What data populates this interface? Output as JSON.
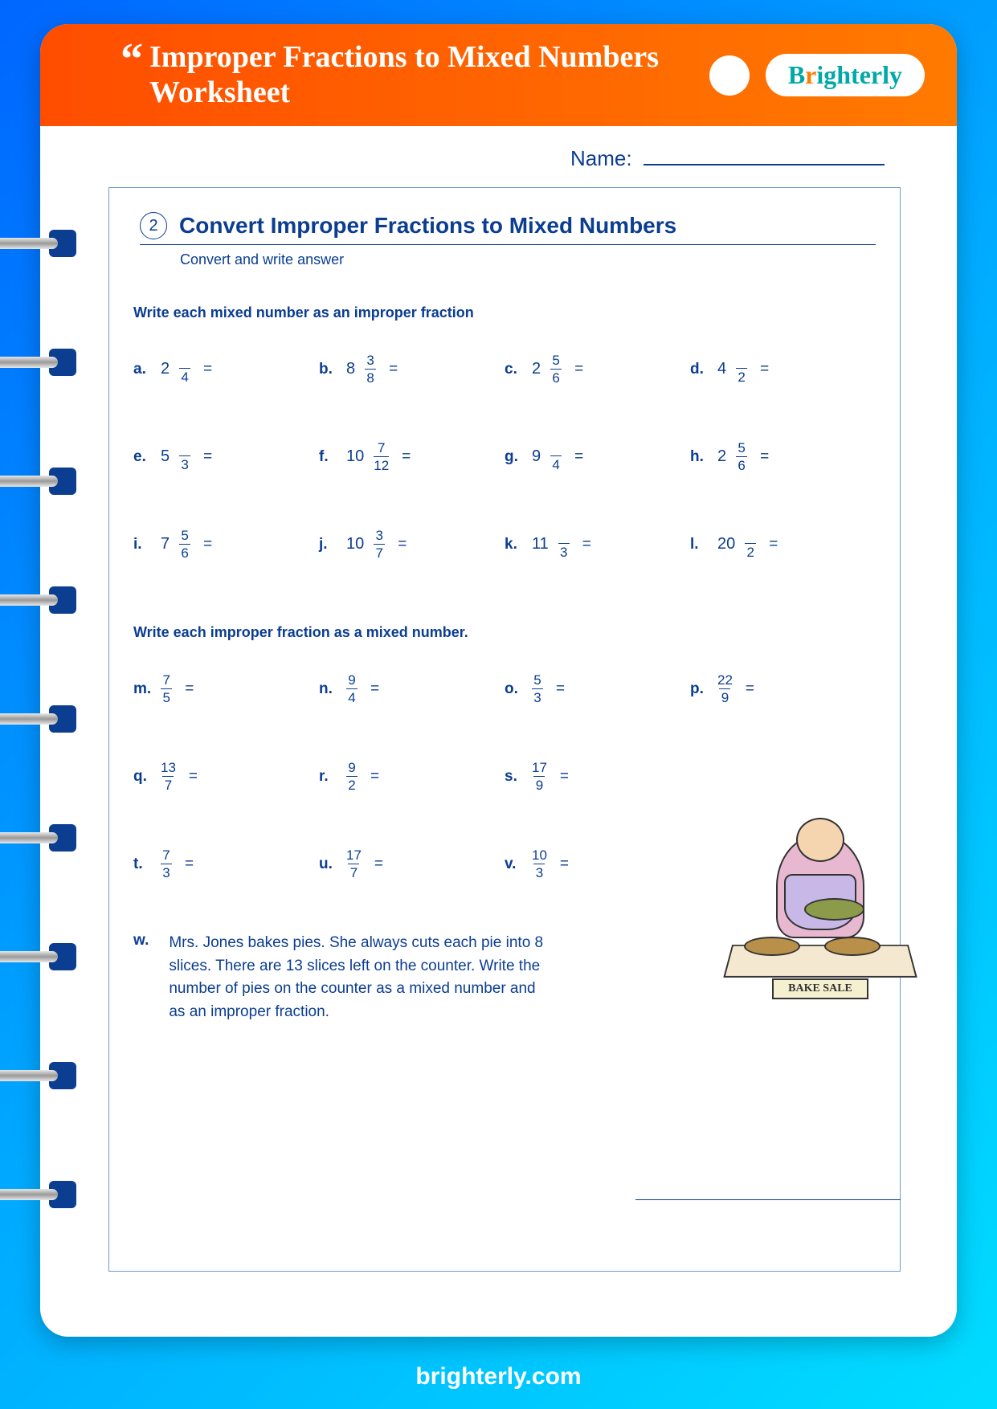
{
  "header": {
    "title": "Improper Fractions to Mixed Numbers Worksheet",
    "logo": "Brighterly"
  },
  "name_label": "Name:",
  "section": {
    "number": "2",
    "title": "Convert Improper Fractions to Mixed Numbers",
    "subtitle": "Convert and write answer"
  },
  "subheading1": "Write each mixed number as an improper fraction",
  "subheading2": "Write each improper fraction as a mixed number.",
  "mixed_problems": [
    {
      "label": "a.",
      "whole": "2",
      "num": "",
      "den": "4"
    },
    {
      "label": "b.",
      "whole": "8",
      "num": "3",
      "den": "8"
    },
    {
      "label": "c.",
      "whole": "2",
      "num": "5",
      "den": "6"
    },
    {
      "label": "d.",
      "whole": "4",
      "num": "",
      "den": "2"
    },
    {
      "label": "e.",
      "whole": "5",
      "num": "",
      "den": "3"
    },
    {
      "label": "f.",
      "whole": "10",
      "num": "7",
      "den": "12"
    },
    {
      "label": "g.",
      "whole": "9",
      "num": "",
      "den": "4"
    },
    {
      "label": "h.",
      "whole": "2",
      "num": "5",
      "den": "6"
    },
    {
      "label": "i.",
      "whole": "7",
      "num": "5",
      "den": "6"
    },
    {
      "label": "j.",
      "whole": "10",
      "num": "3",
      "den": "7"
    },
    {
      "label": "k.",
      "whole": "11",
      "num": "",
      "den": "3"
    },
    {
      "label": "l.",
      "whole": "20",
      "num": "",
      "den": "2"
    }
  ],
  "improper_problems": [
    {
      "label": "m.",
      "num": "7",
      "den": "5"
    },
    {
      "label": "n.",
      "num": "9",
      "den": "4"
    },
    {
      "label": "o.",
      "num": "5",
      "den": "3"
    },
    {
      "label": "p.",
      "num": "22",
      "den": "9"
    },
    {
      "label": "q.",
      "num": "13",
      "den": "7"
    },
    {
      "label": "r.",
      "num": "9",
      "den": "2"
    },
    {
      "label": "s.",
      "num": "17",
      "den": "9"
    },
    {
      "label": "",
      "num": "",
      "den": ""
    },
    {
      "label": "t.",
      "num": "7",
      "den": "3"
    },
    {
      "label": "u.",
      "num": "17",
      "den": "7"
    },
    {
      "label": "v.",
      "num": "10",
      "den": "3"
    },
    {
      "label": "",
      "num": "",
      "den": ""
    }
  ],
  "word_problem": {
    "label": "w.",
    "text": "Mrs. Jones bakes pies.  She always cuts each pie into 8 slices.  There are 13 slices left on the counter.  Write the number of pies on the counter as a mixed number and as an improper fraction."
  },
  "bake_sale": "BAKE SALE",
  "footer": "brighterly.com",
  "colors": {
    "primary_text": "#0b3d91",
    "header_gradient_start": "#ff4d00",
    "header_gradient_end": "#ff7a00",
    "bg_gradient_start": "#0066ff",
    "bg_gradient_end": "#00ddff",
    "logo_teal": "#00a8a8",
    "logo_orange": "#ff7a00"
  }
}
